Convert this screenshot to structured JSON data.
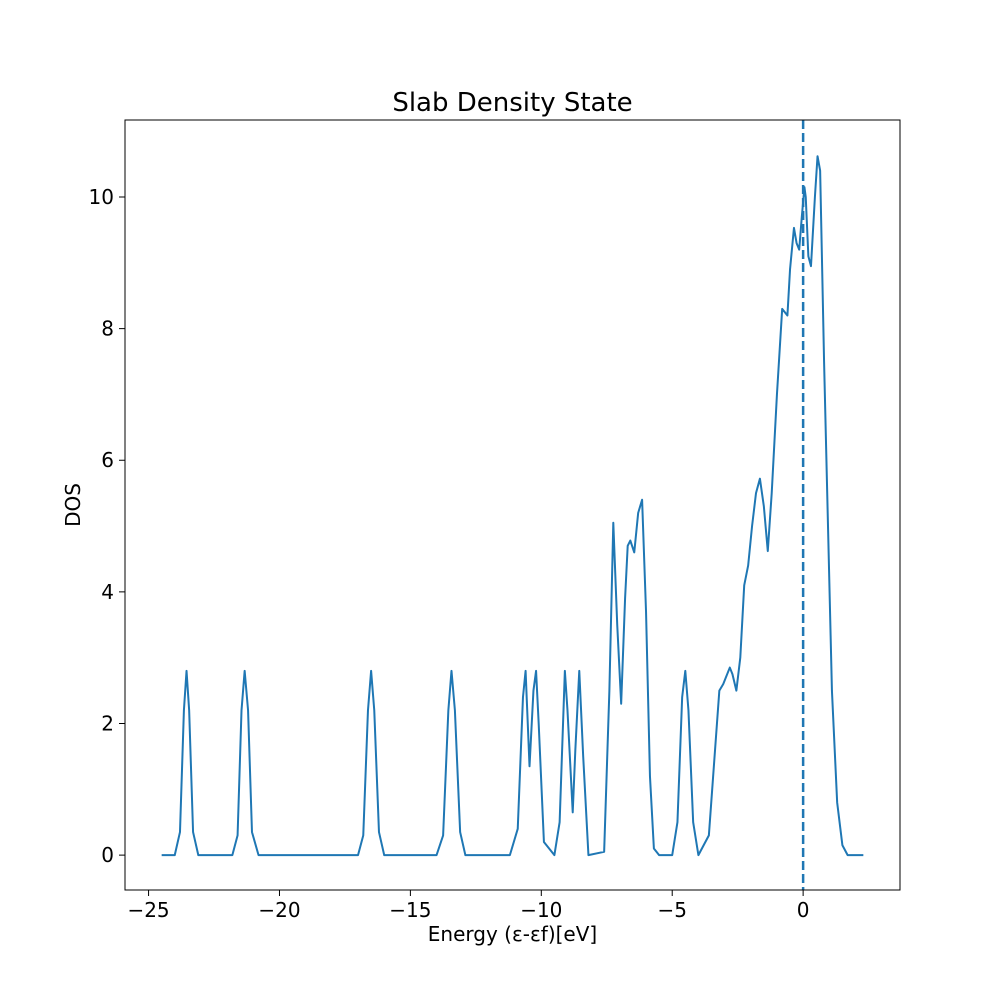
{
  "chart_data": {
    "type": "line",
    "title": "Slab Density State",
    "xlabel": "Energy (ε-εf)[eV]",
    "ylabel": "DOS",
    "xlim": [
      -25.9,
      3.7
    ],
    "ylim": [
      -0.53,
      11.17
    ],
    "xticks": [
      -25,
      -20,
      -15,
      -10,
      -5,
      0
    ],
    "xtick_labels": [
      "−25",
      "−20",
      "−15",
      "−10",
      "−5",
      "0"
    ],
    "yticks": [
      0,
      2,
      4,
      6,
      8,
      10
    ],
    "ytick_labels": [
      "0",
      "2",
      "4",
      "6",
      "8",
      "10"
    ],
    "grid": false,
    "legend": "none",
    "colors": {
      "line": "#1f77b4",
      "axes": "#000000"
    },
    "fermi_level": {
      "x": 0,
      "style": "dashed"
    },
    "series": [
      {
        "x": [
          -24.5,
          -24.0,
          -23.8,
          -23.65,
          -23.55,
          -23.45,
          -23.3,
          -23.1,
          -22.5,
          -21.8,
          -21.6,
          -21.45,
          -21.33,
          -21.2,
          -21.05,
          -20.8,
          -20.0,
          -17.0,
          -16.8,
          -16.62,
          -16.5,
          -16.38,
          -16.2,
          -16.0,
          -14.0,
          -13.75,
          -13.55,
          -13.43,
          -13.3,
          -13.1,
          -12.9,
          -11.2,
          -10.9,
          -10.7,
          -10.6,
          -10.45,
          -10.3,
          -10.2,
          -10.1,
          -9.9,
          -9.5,
          -9.3,
          -9.1,
          -9.0,
          -8.8,
          -8.7,
          -8.55,
          -8.4,
          -8.2,
          -7.6,
          -7.4,
          -7.25,
          -7.1,
          -6.95,
          -6.8,
          -6.7,
          -6.6,
          -6.45,
          -6.3,
          -6.15,
          -6.0,
          -5.85,
          -5.7,
          -5.5,
          -5.0,
          -4.8,
          -4.62,
          -4.5,
          -4.38,
          -4.2,
          -4.0,
          -3.6,
          -3.4,
          -3.2,
          -3.05,
          -2.95,
          -2.8,
          -2.7,
          -2.55,
          -2.4,
          -2.25,
          -2.1,
          -1.95,
          -1.8,
          -1.65,
          -1.5,
          -1.35,
          -1.2,
          -1.0,
          -0.8,
          -0.6,
          -0.5,
          -0.35,
          -0.25,
          -0.15,
          -0.05,
          0.05,
          0.1,
          0.2,
          0.3,
          0.45,
          0.55,
          0.65,
          0.8,
          0.95,
          1.1,
          1.3,
          1.5,
          1.7,
          1.9,
          2.3
        ],
        "y": [
          0.0,
          0.0,
          0.35,
          2.2,
          2.8,
          2.2,
          0.35,
          0.0,
          0.0,
          0.0,
          0.3,
          2.2,
          2.8,
          2.2,
          0.35,
          0.0,
          0.0,
          0.0,
          0.3,
          2.2,
          2.8,
          2.2,
          0.35,
          0.0,
          0.0,
          0.3,
          2.2,
          2.8,
          2.2,
          0.35,
          0.0,
          0.0,
          0.4,
          2.4,
          2.8,
          1.35,
          2.5,
          2.8,
          2.0,
          0.2,
          0.0,
          0.5,
          2.8,
          2.2,
          0.65,
          1.6,
          2.8,
          1.5,
          0.0,
          0.05,
          2.5,
          5.05,
          3.5,
          2.3,
          3.9,
          4.7,
          4.78,
          4.6,
          5.2,
          5.4,
          3.7,
          1.2,
          0.1,
          0.0,
          0.0,
          0.5,
          2.4,
          2.8,
          2.2,
          0.5,
          0.0,
          0.3,
          1.4,
          2.5,
          2.6,
          2.7,
          2.85,
          2.75,
          2.5,
          3.0,
          4.1,
          4.4,
          5.0,
          5.5,
          5.72,
          5.3,
          4.62,
          5.5,
          7.0,
          8.3,
          8.2,
          8.9,
          9.53,
          9.3,
          9.2,
          9.7,
          10.15,
          10.0,
          9.1,
          8.95,
          10.0,
          10.62,
          10.4,
          7.5,
          5.0,
          2.5,
          0.8,
          0.15,
          0.0,
          0.0,
          0.0
        ]
      }
    ]
  }
}
